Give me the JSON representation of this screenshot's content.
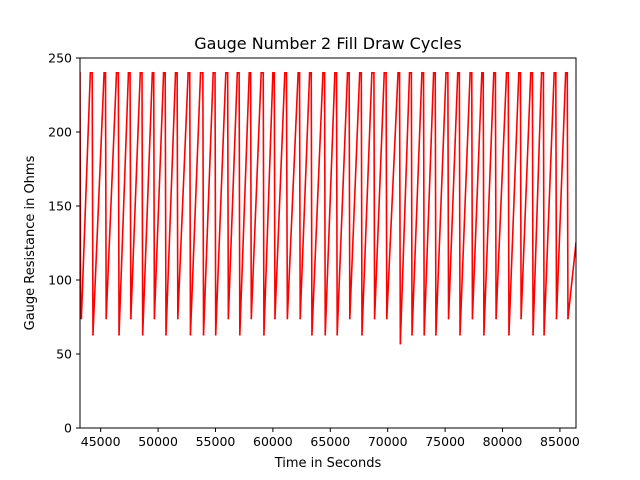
{
  "chart_data": {
    "type": "line",
    "title": "Gauge Number 2 Fill Draw Cycles",
    "xlabel": "Time in Seconds",
    "ylabel": "Gauge Resistance in Ohms",
    "xlim": [
      43200,
      86400
    ],
    "ylim": [
      0,
      250
    ],
    "xticks": [
      45000,
      50000,
      55000,
      60000,
      65000,
      70000,
      75000,
      80000,
      85000
    ],
    "yticks": [
      0,
      50,
      100,
      150,
      200,
      250
    ],
    "grid": false,
    "legend": "none",
    "series": [
      {
        "color": "#ff0000",
        "x": [
          43200,
          43250,
          43320,
          44100,
          44260,
          44330,
          45300,
          45420,
          45480,
          46380,
          46540,
          46600,
          47420,
          47560,
          47630,
          48450,
          48600,
          48660,
          49500,
          49620,
          49680,
          50480,
          50620,
          50690,
          51520,
          51660,
          51720,
          52620,
          52760,
          52820,
          53700,
          53900,
          53960,
          54800,
          54960,
          55020,
          55900,
          56060,
          56120,
          56900,
          57060,
          57120,
          57940,
          58060,
          58120,
          58980,
          59160,
          59220,
          60000,
          60120,
          60180,
          61040,
          61180,
          61260,
          62200,
          62320,
          62380,
          63200,
          63340,
          63400,
          64360,
          64500,
          64560,
          65400,
          65540,
          65600,
          66500,
          66640,
          66700,
          67560,
          67700,
          67760,
          68620,
          68800,
          68860,
          69700,
          69860,
          69920,
          70900,
          71030,
          71100,
          71900,
          72060,
          72120,
          72980,
          73120,
          73180,
          74000,
          74140,
          74200,
          75080,
          75240,
          75300,
          76100,
          76240,
          76300,
          77180,
          77320,
          77380,
          78200,
          78320,
          78380,
          79240,
          79380,
          79440,
          80350,
          80500,
          80560,
          81420,
          81560,
          81620,
          82460,
          82600,
          82660,
          83400,
          83560,
          83620,
          84500,
          84640,
          84700,
          85500,
          85640,
          85700,
          86400
        ],
        "y": [
          240,
          78,
          74,
          240,
          240,
          63,
          240,
          240,
          74,
          240,
          240,
          63,
          240,
          240,
          74,
          240,
          240,
          63,
          240,
          240,
          74,
          240,
          240,
          63,
          240,
          240,
          74,
          240,
          240,
          63,
          240,
          240,
          63,
          240,
          240,
          63,
          240,
          240,
          74,
          240,
          240,
          63,
          240,
          240,
          74,
          240,
          240,
          63,
          240,
          240,
          74,
          240,
          240,
          74,
          240,
          240,
          74,
          240,
          240,
          63,
          240,
          240,
          63,
          240,
          240,
          63,
          240,
          240,
          74,
          240,
          240,
          63,
          240,
          240,
          74,
          240,
          240,
          74,
          240,
          240,
          57,
          240,
          240,
          63,
          240,
          240,
          63,
          240,
          240,
          63,
          240,
          240,
          74,
          240,
          240,
          63,
          240,
          240,
          74,
          240,
          240,
          63,
          240,
          240,
          74,
          240,
          240,
          63,
          240,
          240,
          74,
          240,
          240,
          63,
          240,
          240,
          63,
          240,
          240,
          74,
          240,
          240,
          74,
          125
        ]
      }
    ]
  }
}
